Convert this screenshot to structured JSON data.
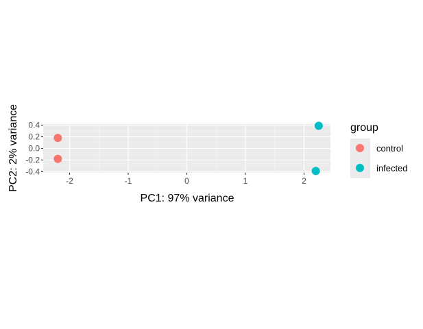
{
  "chart_data": {
    "type": "scatter",
    "xlabel": "PC1: 97% variance",
    "ylabel": "PC2: 2% variance",
    "xlim": [
      -2.45,
      2.45
    ],
    "ylim": [
      -0.42,
      0.42
    ],
    "x_ticks": [
      -2,
      -1,
      0,
      1,
      2
    ],
    "y_ticks": [
      0.4,
      0.2,
      0.0,
      -0.2,
      -0.4
    ],
    "x_tick_labels": [
      "-2",
      "-1",
      "0",
      "1",
      "2"
    ],
    "y_tick_labels": [
      "0.4",
      "0.2",
      "0.0",
      "-0.2",
      "-0.4"
    ],
    "grid": true,
    "legend": {
      "title": "group",
      "position": "right"
    },
    "series": [
      {
        "name": "control",
        "color": "#F8766D",
        "points": [
          {
            "x": -2.2,
            "y": 0.18
          },
          {
            "x": -2.2,
            "y": -0.18
          }
        ]
      },
      {
        "name": "infected",
        "color": "#00BFC4",
        "points": [
          {
            "x": 2.25,
            "y": 0.39
          },
          {
            "x": 2.2,
            "y": -0.39
          }
        ]
      }
    ]
  }
}
